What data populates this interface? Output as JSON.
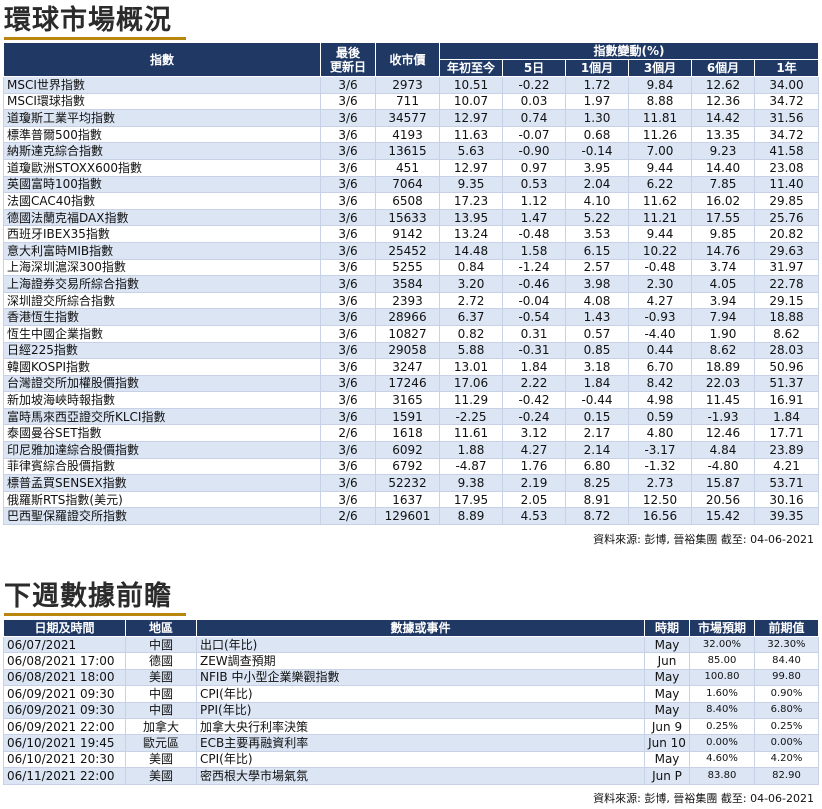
{
  "title1": "環球市場概況",
  "title2": "下週數據前瞻",
  "market": {
    "headers": {
      "index": "指數",
      "last_update": [
        "最後",
        "更新日"
      ],
      "close": "收市價",
      "change_group": "指數變動(%)",
      "ytd": "年初至今",
      "d5": "5日",
      "m1": "1個月",
      "m3": "3個月",
      "m6": "6個月",
      "y1": "1年"
    },
    "rows": [
      [
        "MSCI世界指數",
        "3/6",
        "2973",
        "10.51",
        "-0.22",
        "1.72",
        "9.84",
        "12.62",
        "34.00"
      ],
      [
        "MSCI環球指數",
        "3/6",
        "711",
        "10.07",
        "0.03",
        "1.97",
        "8.88",
        "12.36",
        "34.72"
      ],
      [
        "道瓊斯工業平均指數",
        "3/6",
        "34577",
        "12.97",
        "0.74",
        "1.30",
        "11.81",
        "14.42",
        "31.56"
      ],
      [
        "標準普爾500指數",
        "3/6",
        "4193",
        "11.63",
        "-0.07",
        "0.68",
        "11.26",
        "13.35",
        "34.72"
      ],
      [
        "納斯達克綜合指數",
        "3/6",
        "13615",
        "5.63",
        "-0.90",
        "-0.14",
        "7.00",
        "9.23",
        "41.58"
      ],
      [
        "道瓊歐洲STOXX600指數",
        "3/6",
        "451",
        "12.97",
        "0.97",
        "3.95",
        "9.44",
        "14.40",
        "23.08"
      ],
      [
        "英國富時100指數",
        "3/6",
        "7064",
        "9.35",
        "0.53",
        "2.04",
        "6.22",
        "7.85",
        "11.40"
      ],
      [
        "法國CAC40指數",
        "3/6",
        "6508",
        "17.23",
        "1.12",
        "4.10",
        "11.62",
        "16.02",
        "29.85"
      ],
      [
        "德國法蘭克福DAX指數",
        "3/6",
        "15633",
        "13.95",
        "1.47",
        "5.22",
        "11.21",
        "17.55",
        "25.76"
      ],
      [
        "西班牙IBEX35指數",
        "3/6",
        "9142",
        "13.24",
        "-0.48",
        "3.53",
        "9.44",
        "9.85",
        "20.82"
      ],
      [
        "意大利富時MIB指數",
        "3/6",
        "25452",
        "14.48",
        "1.58",
        "6.15",
        "10.22",
        "14.76",
        "29.63"
      ],
      [
        "上海深圳滬深300指數",
        "3/6",
        "5255",
        "0.84",
        "-1.24",
        "2.57",
        "-0.48",
        "3.74",
        "31.97"
      ],
      [
        "上海證券交易所綜合指數",
        "3/6",
        "3584",
        "3.20",
        "-0.46",
        "3.98",
        "2.30",
        "4.05",
        "22.78"
      ],
      [
        "深圳證交所綜合指數",
        "3/6",
        "2393",
        "2.72",
        "-0.04",
        "4.08",
        "4.27",
        "3.94",
        "29.15"
      ],
      [
        "香港恆生指數",
        "3/6",
        "28966",
        "6.37",
        "-0.54",
        "1.43",
        "-0.93",
        "7.94",
        "18.88"
      ],
      [
        "恆生中國企業指數",
        "3/6",
        "10827",
        "0.82",
        "0.31",
        "0.57",
        "-4.40",
        "1.90",
        "8.62"
      ],
      [
        "日經225指數",
        "3/6",
        "29058",
        "5.88",
        "-0.31",
        "0.85",
        "0.44",
        "8.62",
        "28.03"
      ],
      [
        "韓國KOSPI指數",
        "3/6",
        "3247",
        "13.01",
        "1.84",
        "3.18",
        "6.70",
        "18.89",
        "50.96"
      ],
      [
        "台灣證交所加權股價指數",
        "3/6",
        "17246",
        "17.06",
        "2.22",
        "1.84",
        "8.42",
        "22.03",
        "51.37"
      ],
      [
        "新加坡海峽時報指數",
        "3/6",
        "3165",
        "11.29",
        "-0.42",
        "-0.44",
        "4.98",
        "11.45",
        "16.91"
      ],
      [
        "富時馬來西亞證交所KLCI指數",
        "3/6",
        "1591",
        "-2.25",
        "-0.24",
        "0.15",
        "0.59",
        "-1.93",
        "1.84"
      ],
      [
        "泰國曼谷SET指數",
        "2/6",
        "1618",
        "11.61",
        "3.12",
        "2.17",
        "4.80",
        "12.46",
        "17.71"
      ],
      [
        "印尼雅加達綜合股價指數",
        "3/6",
        "6092",
        "1.88",
        "4.27",
        "2.14",
        "-3.17",
        "4.84",
        "23.89"
      ],
      [
        "菲律賓綜合股價指數",
        "3/6",
        "6792",
        "-4.87",
        "1.76",
        "6.80",
        "-1.32",
        "-4.80",
        "4.21"
      ],
      [
        "標普孟買SENSEX指數",
        "3/6",
        "52232",
        "9.38",
        "2.19",
        "8.25",
        "2.73",
        "15.87",
        "53.71"
      ],
      [
        "俄羅斯RTS指數(美元)",
        "3/6",
        "1637",
        "17.95",
        "2.05",
        "8.91",
        "12.50",
        "20.56",
        "30.16"
      ],
      [
        "巴西聖保羅證交所指數",
        "2/6",
        "129601",
        "8.89",
        "4.53",
        "8.72",
        "16.56",
        "15.42",
        "39.35"
      ]
    ],
    "source": "資料來源: 彭博, 晉裕集團 截至: 04-06-2021"
  },
  "events": {
    "headers": {
      "datetime": "日期及時間",
      "region": "地區",
      "event": "數據或事件",
      "period": "時期",
      "forecast": "市場預期",
      "previous": "前期值"
    },
    "rows": [
      [
        "06/07/2021",
        "中國",
        "出口(年比)",
        "May",
        "32.00%",
        "32.30%"
      ],
      [
        "06/08/2021 17:00",
        "德國",
        "ZEW調查預期",
        "Jun",
        "85.00",
        "84.40"
      ],
      [
        "06/08/2021 18:00",
        "美國",
        "NFIB 中小型企業樂觀指數",
        "May",
        "100.80",
        "99.80"
      ],
      [
        "06/09/2021 09:30",
        "中國",
        "CPI(年比)",
        "May",
        "1.60%",
        "0.90%"
      ],
      [
        "06/09/2021 09:30",
        "中國",
        "PPI(年比)",
        "May",
        "8.40%",
        "6.80%"
      ],
      [
        "06/09/2021 22:00",
        "加拿大",
        "加拿大央行利率決策",
        "Jun 9",
        "0.25%",
        "0.25%"
      ],
      [
        "06/10/2021 19:45",
        "歐元區",
        "ECB主要再融資利率",
        "Jun 10",
        "0.00%",
        "0.00%"
      ],
      [
        "06/10/2021 20:30",
        "美國",
        "CPI(年比)",
        "May",
        "4.60%",
        "4.20%"
      ],
      [
        "06/11/2021 22:00",
        "美國",
        "密西根大學市場氣氛",
        "Jun P",
        "83.80",
        "82.90"
      ]
    ],
    "source": "資料來源: 彭博, 晉裕集團 截至: 04-06-2021"
  }
}
